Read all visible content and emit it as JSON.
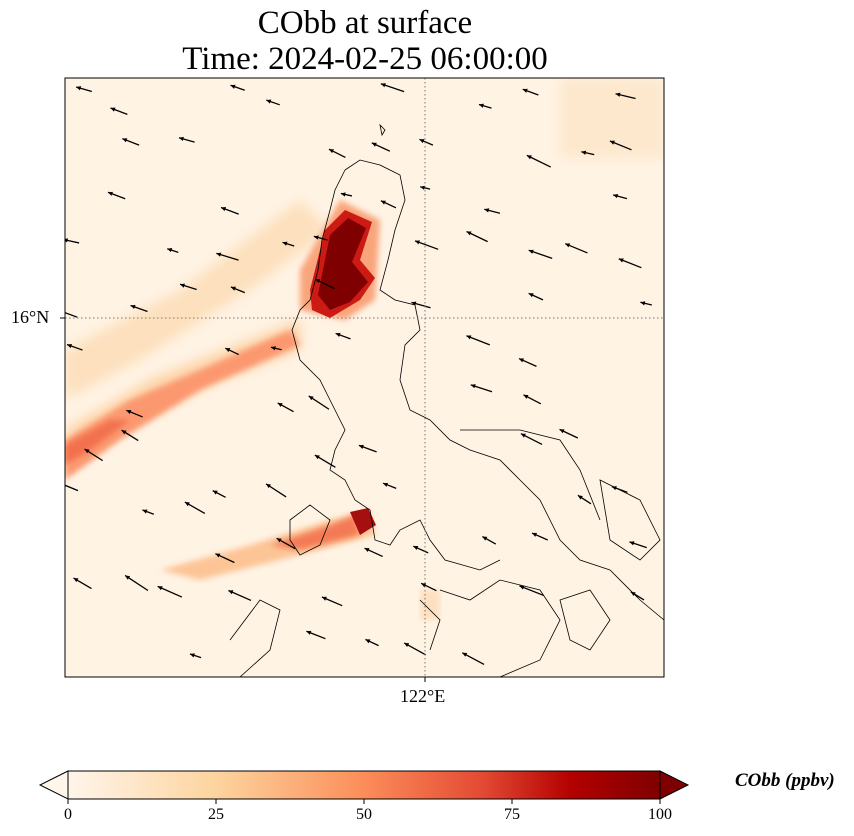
{
  "title": {
    "line1": "CObb at surface",
    "line2": "Time: 2024-02-25 06:00:00"
  },
  "axes": {
    "lat_label": "16°N",
    "lon_label": "122°E"
  },
  "colorbar": {
    "label": "CObb (ppbv)",
    "ticks": [
      "0",
      "25",
      "50",
      "75",
      "100"
    ],
    "range": [
      0,
      100
    ],
    "extend": "both",
    "colormap": [
      "#fff5eb",
      "#fdd49e",
      "#fc8d59",
      "#d7301f",
      "#b30000",
      "#7f0000"
    ]
  },
  "chart_data": {
    "type": "heatmap",
    "title": "CObb at surface\nTime: 2024-02-25 06:00:00",
    "variable": "CObb",
    "units": "ppbv",
    "gridlines": {
      "lat": [
        "16°N"
      ],
      "lon": [
        "122°E"
      ]
    },
    "vmin": 0,
    "vmax": 100,
    "overlay": "wind vectors (arrows), coastlines"
  }
}
